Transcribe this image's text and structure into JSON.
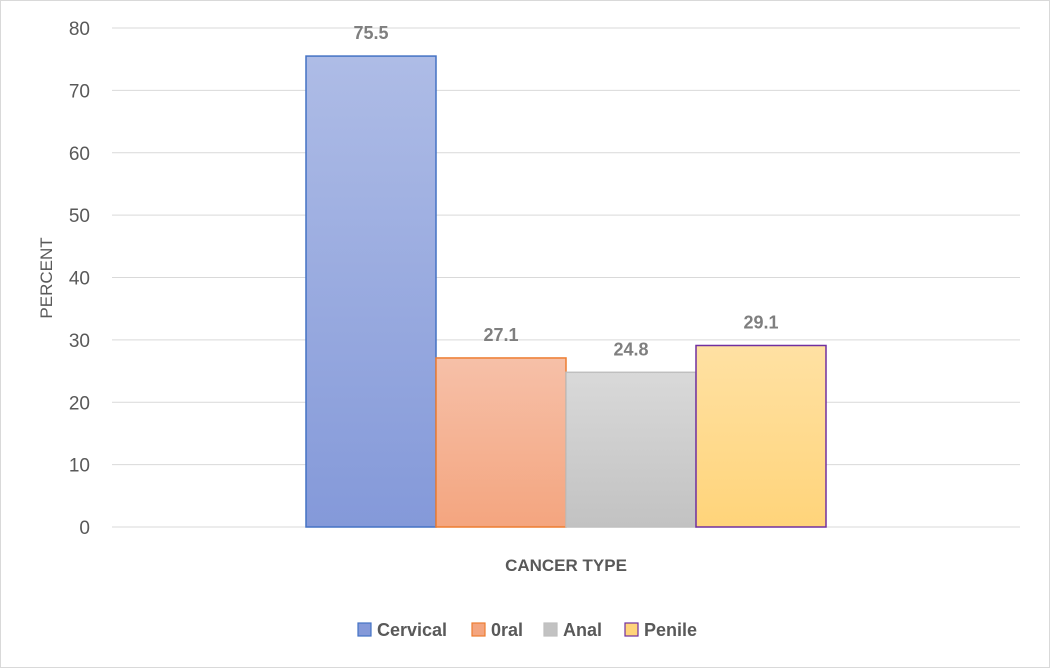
{
  "chart_data": {
    "type": "bar",
    "categories": [
      ""
    ],
    "series": [
      {
        "name": "Cervical",
        "values": [
          75.5
        ],
        "fill_top": "#aebce6",
        "fill_bottom": "#8499d9",
        "stroke": "#4472c4"
      },
      {
        "name": "0ral",
        "values": [
          27.1
        ],
        "fill_top": "#f6c0a8",
        "fill_bottom": "#f4a57f",
        "stroke": "#ed7d31"
      },
      {
        "name": "Anal",
        "values": [
          24.8
        ],
        "fill_top": "#d9d9d9",
        "fill_bottom": "#c2c2c2",
        "stroke": "#bfbfbf"
      },
      {
        "name": "Penile",
        "values": [
          29.1
        ],
        "fill_top": "#ffe1a3",
        "fill_bottom": "#ffd47a",
        "stroke": "#7030a0"
      }
    ],
    "data_labels": [
      "75.5",
      "27.1",
      "24.8",
      "29.1"
    ],
    "xlabel": "CANCER TYPE",
    "ylabel": "PERCENT",
    "ylim": [
      0,
      80
    ],
    "yticks": [
      "0",
      "10",
      "20",
      "30",
      "40",
      "50",
      "60",
      "70",
      "80"
    ],
    "grid": true,
    "legend_position": "bottom"
  }
}
